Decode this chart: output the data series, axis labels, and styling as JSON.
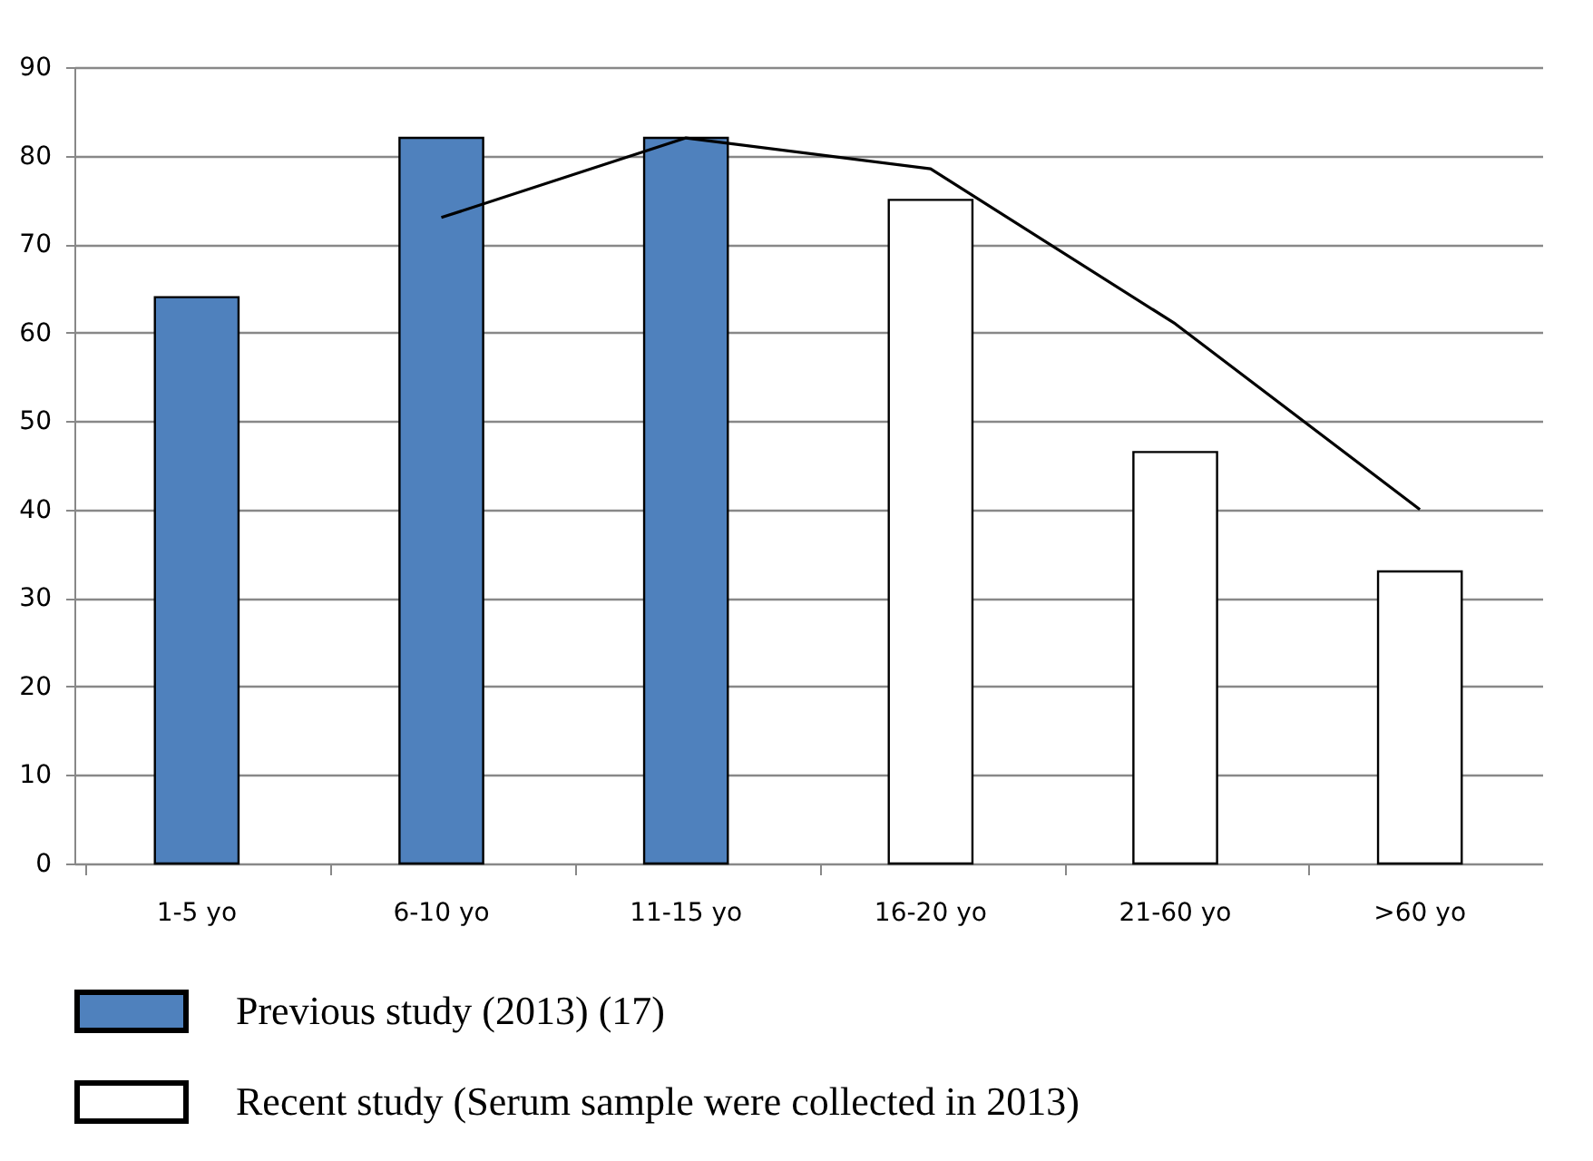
{
  "chart_data": {
    "type": "bar",
    "categories": [
      "1-5 yo",
      "6-10 yo",
      "11-15 yo",
      "16-20 yo",
      "21-60 yo",
      ">60 yo"
    ],
    "series": [
      {
        "name": "Previous study (2013) (17)",
        "color": "#4f81bd",
        "values": [
          64,
          82,
          82,
          null,
          null,
          null
        ]
      },
      {
        "name": "Recent study (Serum sample were collected in 2013)",
        "color": "#ffffff",
        "values": [
          null,
          null,
          null,
          75,
          46.5,
          33
        ]
      },
      {
        "type": "line",
        "color": "#000000",
        "values": [
          null,
          73,
          82,
          78.5,
          61,
          40
        ]
      }
    ],
    "ylim": [
      0,
      90
    ],
    "yticks": [
      0,
      10,
      20,
      30,
      40,
      50,
      60,
      70,
      80,
      90
    ],
    "grid": "y",
    "legend": "bottom"
  }
}
